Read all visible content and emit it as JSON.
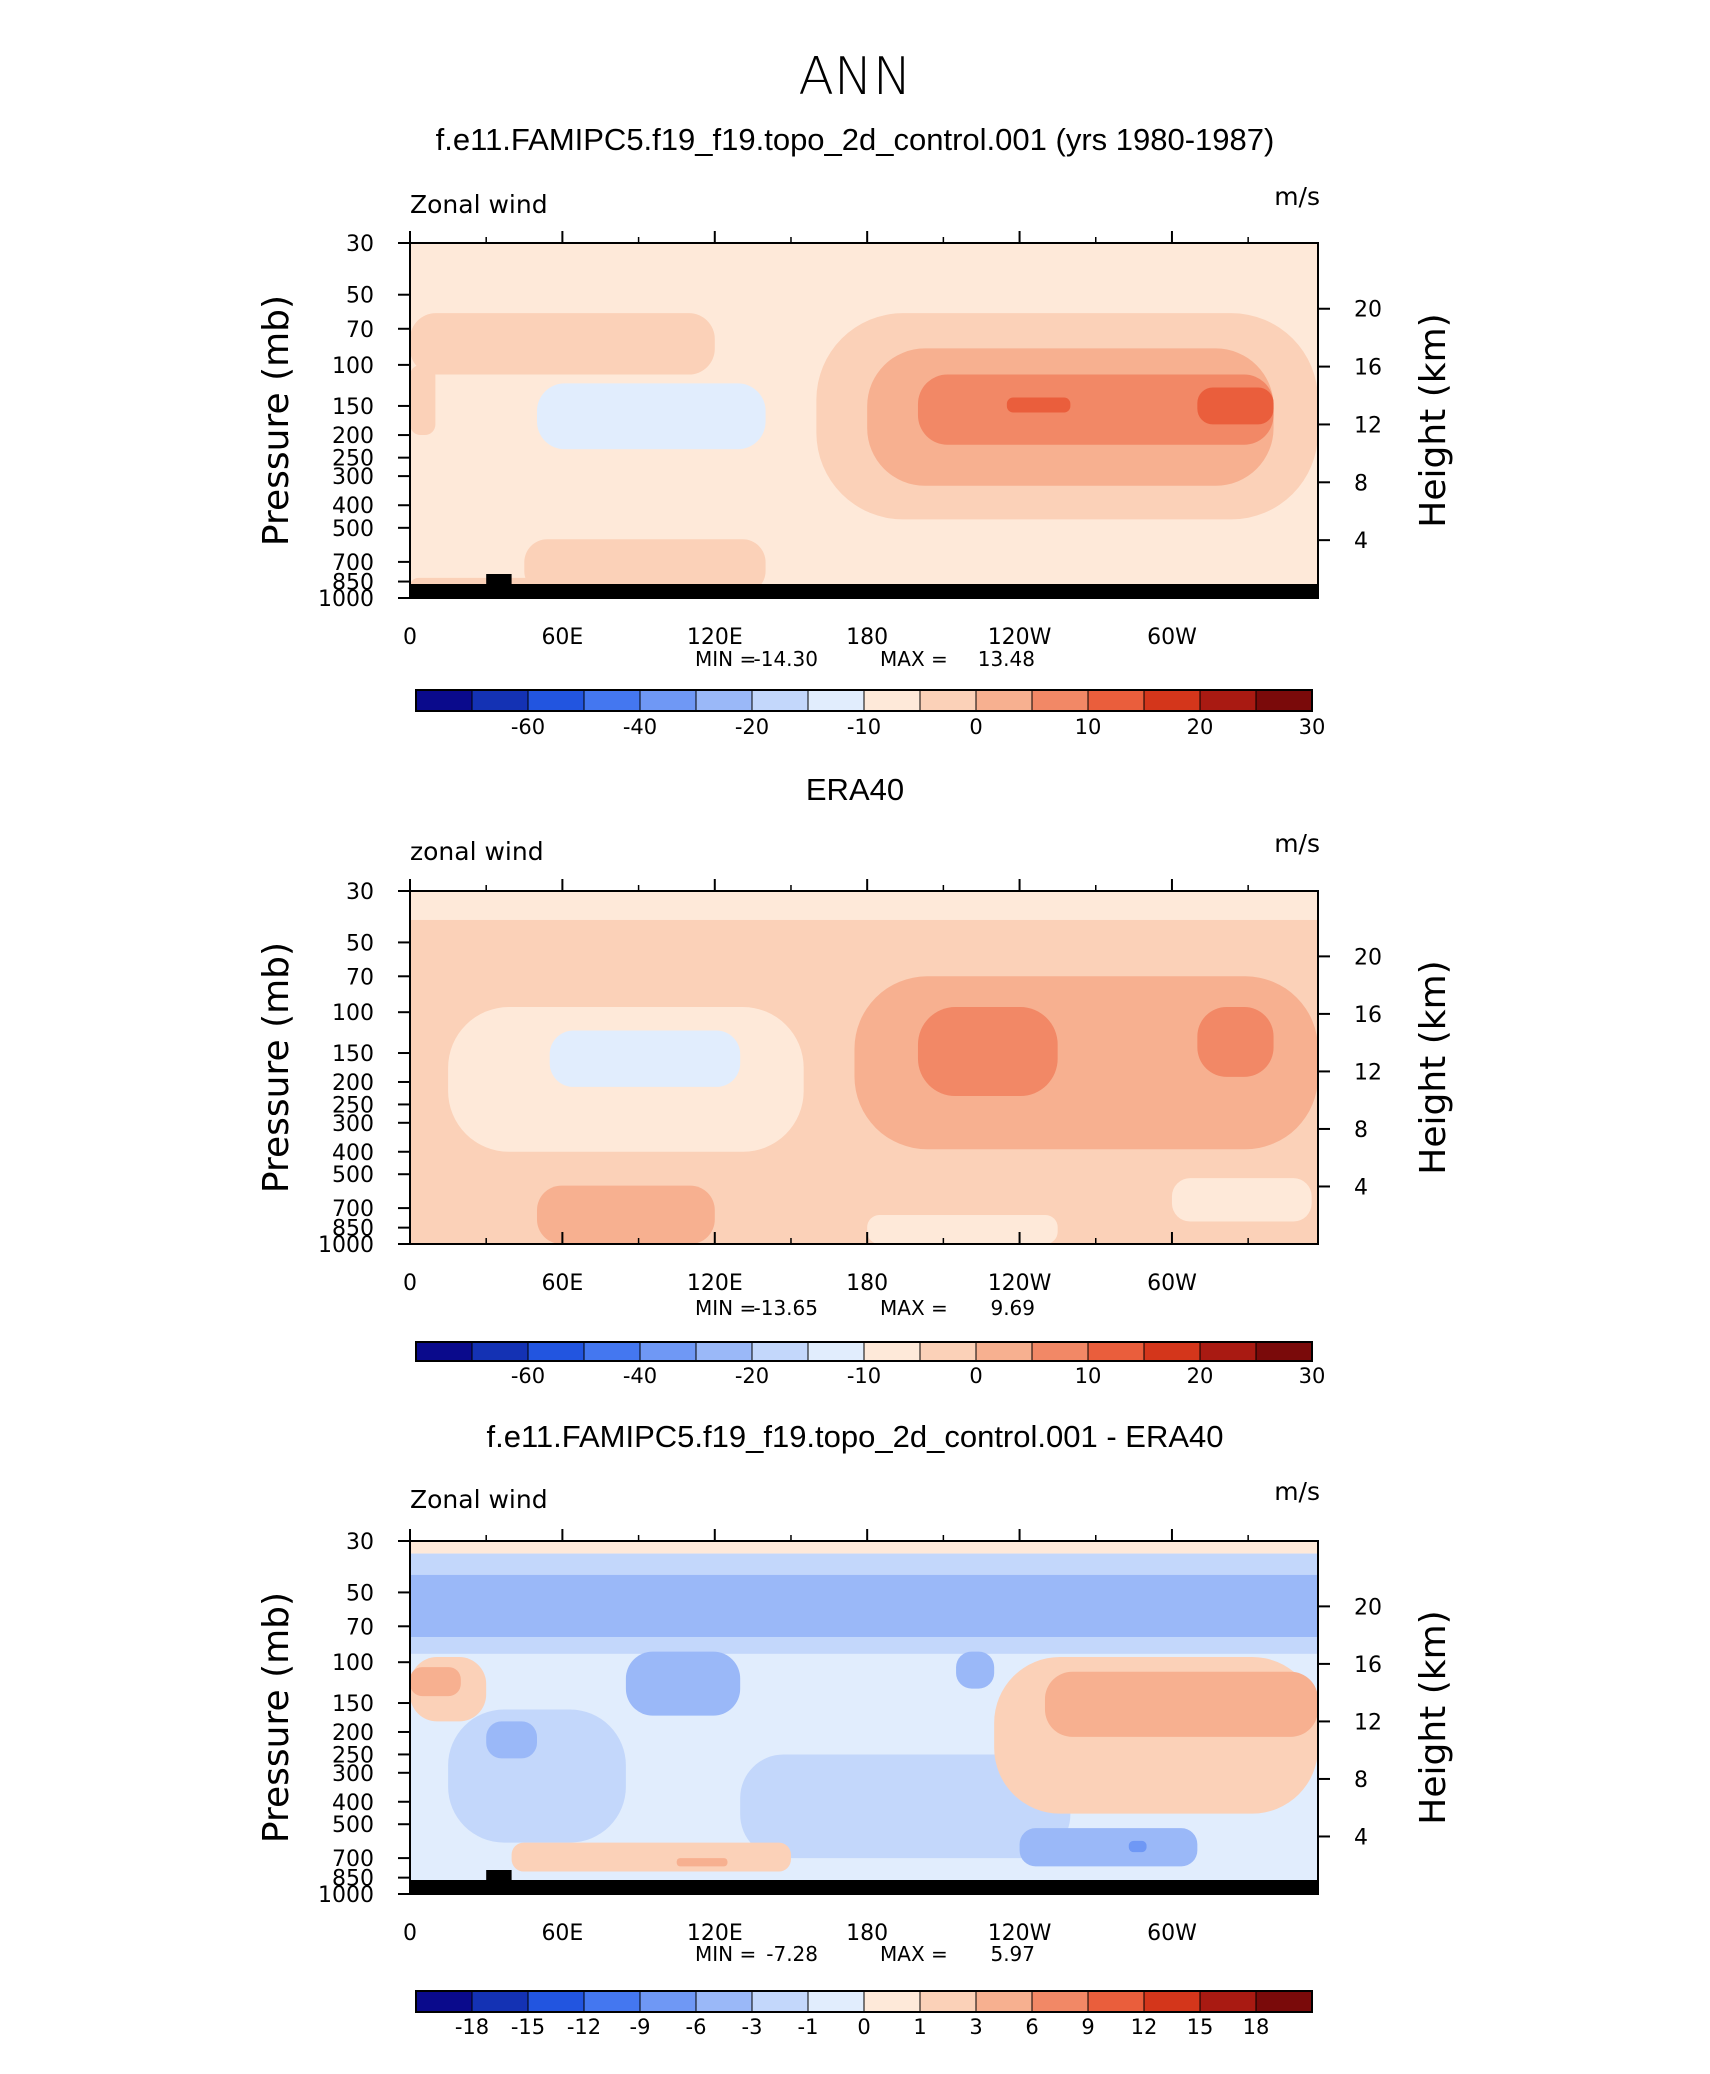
{
  "figure_title": "ANN",
  "palette": [
    "#0a0a8c",
    "#1432b4",
    "#2255e0",
    "#4477f0",
    "#6f98f5",
    "#9ab8f8",
    "#c3d7fb",
    "#e1edfd",
    "#fee9d9",
    "#fbd1b8",
    "#f7b090",
    "#f28866",
    "#ea5e3c",
    "#d4361b",
    "#a91a12",
    "#7a0a0a"
  ],
  "chart_data": [
    {
      "type": "contour",
      "subtitle": "f.e11.FAMIPC5.f19_f19.topo_2d_control.001 (yrs 1980-1987)",
      "left_label": "Zonal wind",
      "units": "m/s",
      "ylabel": "Pressure (mb)",
      "y2label": "Height (km)",
      "xlabel_ticks": [
        "0",
        "60E",
        "120E",
        "180",
        "120W",
        "60W"
      ],
      "x_tick_values": [
        0,
        60,
        120,
        180,
        240,
        300
      ],
      "x_range": [
        0,
        357.5
      ],
      "pressure_ticks": [
        "30",
        "50",
        "70",
        "100",
        "150",
        "200",
        "250",
        "300",
        "400",
        "500",
        "700",
        "850",
        "1000"
      ],
      "pressure_values": [
        30,
        50,
        70,
        100,
        150,
        200,
        250,
        300,
        400,
        500,
        700,
        850,
        1000
      ],
      "height_ticks": [
        "20",
        "16",
        "12",
        "8",
        "4"
      ],
      "height_values": [
        20,
        16,
        12,
        8,
        4
      ],
      "min_label": "MIN =",
      "min_value": "-14.30",
      "max_label": "MAX =",
      "max_value": "13.48",
      "colorbar_labels": [
        "-60",
        "-40",
        "-20",
        "-10",
        "0",
        "10",
        "20",
        "30"
      ],
      "colorbar_levels": [
        -70,
        -60,
        -50,
        -40,
        -30,
        -20,
        -15,
        -10,
        -5,
        0,
        5,
        10,
        15,
        20,
        25,
        30
      ],
      "ground_mask": true,
      "field": [
        {
          "lon_min": 0,
          "lon_max": 357.5,
          "p_min": 30,
          "p_max": 1000,
          "value": -2
        },
        {
          "lon_min": 0,
          "lon_max": 120,
          "p_min": 60,
          "p_max": 110,
          "value": 2
        },
        {
          "lon_min": 0,
          "lon_max": 10,
          "p_min": 100,
          "p_max": 200,
          "value": 4
        },
        {
          "lon_min": 50,
          "lon_max": 140,
          "p_min": 120,
          "p_max": 230,
          "value": -7
        },
        {
          "lon_min": 160,
          "lon_max": 357.5,
          "p_min": 60,
          "p_max": 460,
          "value": 2
        },
        {
          "lon_min": 180,
          "lon_max": 340,
          "p_min": 85,
          "p_max": 330,
          "value": 6
        },
        {
          "lon_min": 200,
          "lon_max": 340,
          "p_min": 110,
          "p_max": 220,
          "value": 10
        },
        {
          "lon_min": 235,
          "lon_max": 260,
          "p_min": 138,
          "p_max": 160,
          "value": 16
        },
        {
          "lon_min": 310,
          "lon_max": 340,
          "p_min": 125,
          "p_max": 180,
          "value": 16
        },
        {
          "lon_min": 45,
          "lon_max": 140,
          "p_min": 560,
          "p_max": 960,
          "value": 3
        },
        {
          "lon_min": 0,
          "lon_max": 60,
          "p_min": 820,
          "p_max": 1000,
          "value": 3
        }
      ]
    },
    {
      "type": "contour",
      "subtitle": "ERA40",
      "left_label": "zonal wind",
      "units": "m/s",
      "ylabel": "Pressure (mb)",
      "y2label": "Height (km)",
      "xlabel_ticks": [
        "0",
        "60E",
        "120E",
        "180",
        "120W",
        "60W"
      ],
      "x_tick_values": [
        0,
        60,
        120,
        180,
        240,
        300
      ],
      "x_range": [
        0,
        357.5
      ],
      "pressure_ticks": [
        "30",
        "50",
        "70",
        "100",
        "150",
        "200",
        "250",
        "300",
        "400",
        "500",
        "700",
        "850",
        "1000"
      ],
      "pressure_values": [
        30,
        50,
        70,
        100,
        150,
        200,
        250,
        300,
        400,
        500,
        700,
        850,
        1000
      ],
      "height_ticks": [
        "20",
        "16",
        "12",
        "8",
        "4"
      ],
      "height_values": [
        20,
        16,
        12,
        8,
        4
      ],
      "min_label": "MIN =",
      "min_value": "-13.65",
      "max_label": "MAX =",
      "max_value": "9.69",
      "colorbar_labels": [
        "-60",
        "-40",
        "-20",
        "-10",
        "0",
        "10",
        "20",
        "30"
      ],
      "colorbar_levels": [
        -70,
        -60,
        -50,
        -40,
        -30,
        -20,
        -15,
        -10,
        -5,
        0,
        5,
        10,
        15,
        20,
        25,
        30
      ],
      "ground_mask": false,
      "field": [
        {
          "lon_min": 0,
          "lon_max": 357.5,
          "p_min": 30,
          "p_max": 1000,
          "value": 2
        },
        {
          "lon_min": 0,
          "lon_max": 357.5,
          "p_min": 30,
          "p_max": 40,
          "value": -2
        },
        {
          "lon_min": 15,
          "lon_max": 155,
          "p_min": 95,
          "p_max": 400,
          "value": -2
        },
        {
          "lon_min": 55,
          "lon_max": 130,
          "p_min": 120,
          "p_max": 210,
          "value": -7
        },
        {
          "lon_min": 175,
          "lon_max": 357.5,
          "p_min": 70,
          "p_max": 390,
          "value": 6
        },
        {
          "lon_min": 200,
          "lon_max": 255,
          "p_min": 95,
          "p_max": 230,
          "value": 10
        },
        {
          "lon_min": 310,
          "lon_max": 340,
          "p_min": 95,
          "p_max": 190,
          "value": 10
        },
        {
          "lon_min": 50,
          "lon_max": 120,
          "p_min": 560,
          "p_max": 1000,
          "value": 6
        },
        {
          "lon_min": 180,
          "lon_max": 255,
          "p_min": 750,
          "p_max": 1000,
          "value": -2
        },
        {
          "lon_min": 300,
          "lon_max": 355,
          "p_min": 520,
          "p_max": 800,
          "value": -2
        }
      ]
    },
    {
      "type": "contour",
      "subtitle": "f.e11.FAMIPC5.f19_f19.topo_2d_control.001 - ERA40",
      "left_label": "Zonal wind",
      "units": "m/s",
      "ylabel": "Pressure (mb)",
      "y2label": "Height (km)",
      "xlabel_ticks": [
        "0",
        "60E",
        "120E",
        "180",
        "120W",
        "60W"
      ],
      "x_tick_values": [
        0,
        60,
        120,
        180,
        240,
        300
      ],
      "x_range": [
        0,
        357.5
      ],
      "pressure_ticks": [
        "30",
        "50",
        "70",
        "100",
        "150",
        "200",
        "250",
        "300",
        "400",
        "500",
        "700",
        "850",
        "1000"
      ],
      "pressure_values": [
        30,
        50,
        70,
        100,
        150,
        200,
        250,
        300,
        400,
        500,
        700,
        850,
        1000
      ],
      "height_ticks": [
        "20",
        "16",
        "12",
        "8",
        "4"
      ],
      "height_values": [
        20,
        16,
        12,
        8,
        4
      ],
      "min_label": "MIN =",
      "min_value": "-7.28",
      "max_label": "MAX =",
      "max_value": "5.97",
      "colorbar_labels": [
        "-18",
        "-15",
        "-12",
        "-9",
        "-6",
        "-3",
        "-1",
        "0",
        "1",
        "3",
        "6",
        "9",
        "12",
        "15",
        "18"
      ],
      "colorbar_levels": [
        -21,
        -18,
        -15,
        -12,
        -9,
        -6,
        -3,
        -1,
        0,
        1,
        3,
        6,
        9,
        12,
        15,
        18
      ],
      "ground_mask": true,
      "field": [
        {
          "lon_min": 0,
          "lon_max": 357.5,
          "p_min": 30,
          "p_max": 1000,
          "value": -0.5
        },
        {
          "lon_min": 0,
          "lon_max": 357.5,
          "p_min": 30,
          "p_max": 34,
          "value": 0.5
        },
        {
          "lon_min": 0,
          "lon_max": 357.5,
          "p_min": 34,
          "p_max": 42,
          "value": -2
        },
        {
          "lon_min": 0,
          "lon_max": 357.5,
          "p_min": 42,
          "p_max": 78,
          "value": -4
        },
        {
          "lon_min": 0,
          "lon_max": 357.5,
          "p_min": 78,
          "p_max": 92,
          "value": -2
        },
        {
          "lon_min": 85,
          "lon_max": 130,
          "p_min": 90,
          "p_max": 170,
          "value": -4
        },
        {
          "lon_min": 215,
          "lon_max": 230,
          "p_min": 90,
          "p_max": 130,
          "value": -4
        },
        {
          "lon_min": 0,
          "lon_max": 30,
          "p_min": 95,
          "p_max": 180,
          "value": 2
        },
        {
          "lon_min": 0,
          "lon_max": 20,
          "p_min": 105,
          "p_max": 140,
          "value": 4
        },
        {
          "lon_min": 15,
          "lon_max": 85,
          "p_min": 160,
          "p_max": 600,
          "value": -2
        },
        {
          "lon_min": 30,
          "lon_max": 50,
          "p_min": 180,
          "p_max": 260,
          "value": -4
        },
        {
          "lon_min": 130,
          "lon_max": 260,
          "p_min": 250,
          "p_max": 700,
          "value": -2
        },
        {
          "lon_min": 240,
          "lon_max": 310,
          "p_min": 520,
          "p_max": 760,
          "value": -4
        },
        {
          "lon_min": 283,
          "lon_max": 290,
          "p_min": 590,
          "p_max": 660,
          "value": -7
        },
        {
          "lon_min": 230,
          "lon_max": 357.5,
          "p_min": 95,
          "p_max": 450,
          "value": 2
        },
        {
          "lon_min": 250,
          "lon_max": 357.5,
          "p_min": 110,
          "p_max": 210,
          "value": 4
        },
        {
          "lon_min": 40,
          "lon_max": 150,
          "p_min": 600,
          "p_max": 800,
          "value": 2
        },
        {
          "lon_min": 105,
          "lon_max": 125,
          "p_min": 700,
          "p_max": 760,
          "value": 4
        }
      ]
    }
  ]
}
